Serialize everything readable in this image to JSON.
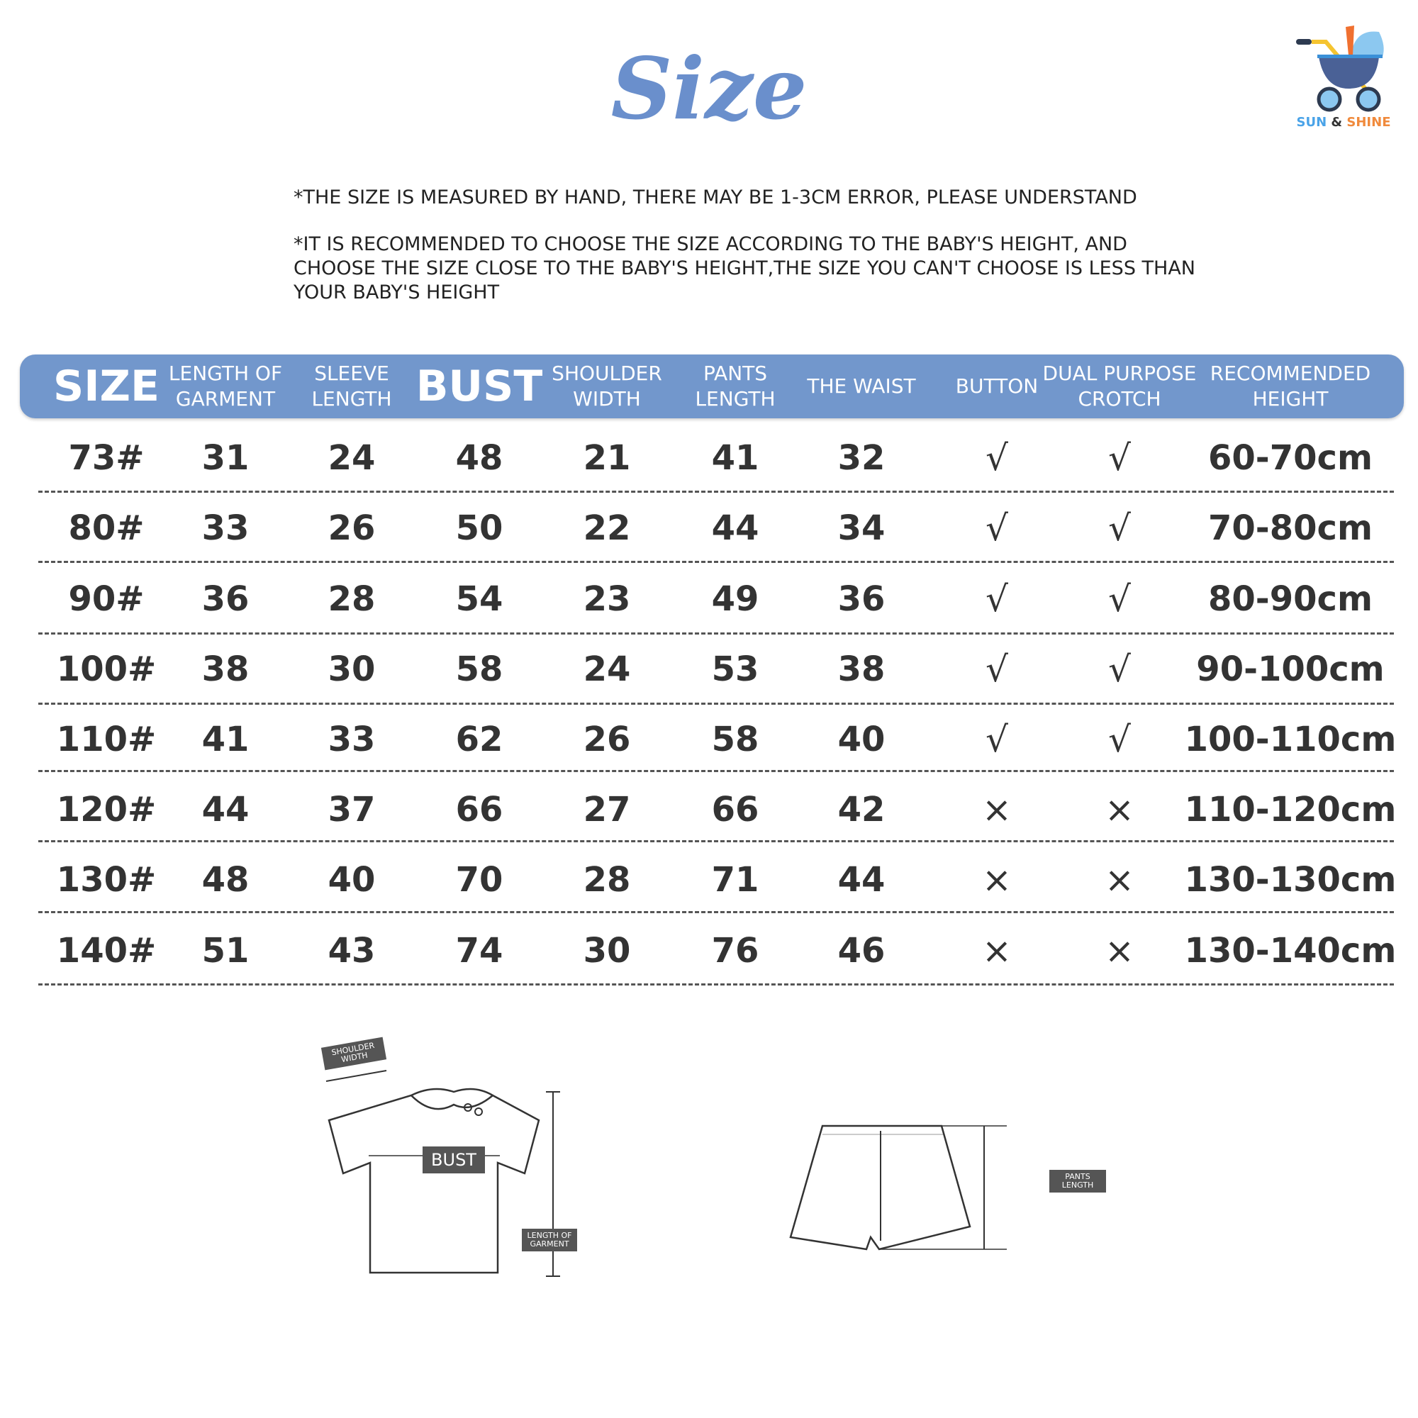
{
  "title": "Size",
  "logo": {
    "text_left": "SUN",
    "text_amp": "&",
    "text_right": "SHINE",
    "colors": {
      "blue": "#4aa3e8",
      "orange": "#f08a3c",
      "navy": "#4a6196",
      "yellow": "#f5c430"
    }
  },
  "notes": [
    "*THE SIZE IS MEASURED BY HAND, THERE MAY BE 1-3CM ERROR, PLEASE UNDERSTAND",
    "*IT IS RECOMMENDED TO CHOOSE THE SIZE ACCORDING TO THE BABY'S HEIGHT, AND CHOOSE THE SIZE CLOSE TO THE BABY'S  HEIGHT,THE SIZE YOU CAN'T CHOOSE IS LESS THAN  YOUR BABY'S HEIGHT"
  ],
  "header_color": "#7297cc",
  "table": {
    "headers": [
      "SIZE",
      "LENGTH OF\nGARMENT",
      "SLEEVE\nLENGTH",
      "BUST",
      "SHOULDER\nWIDTH",
      "PANTS\nLENGTH",
      "THE WAIST",
      "BUTTON",
      "DUAL PURPOSE\nCROTCH",
      "RECOMMENDED\nHEIGHT"
    ],
    "rows": [
      [
        "73#",
        "31",
        "24",
        "48",
        "21",
        "41",
        "32",
        "√",
        "√",
        "60-70cm"
      ],
      [
        "80#",
        "33",
        "26",
        "50",
        "22",
        "44",
        "34",
        "√",
        "√",
        "70-80cm"
      ],
      [
        "90#",
        "36",
        "28",
        "54",
        "23",
        "49",
        "36",
        "√",
        "√",
        "80-90cm"
      ],
      [
        "100#",
        "38",
        "30",
        "58",
        "24",
        "53",
        "38",
        "√",
        "√",
        "90-100cm"
      ],
      [
        "110#",
        "41",
        "33",
        "62",
        "26",
        "58",
        "40",
        "√",
        "√",
        "100-110cm"
      ],
      [
        "120#",
        "44",
        "37",
        "66",
        "27",
        "66",
        "42",
        "×",
        "×",
        "110-120cm"
      ],
      [
        "130#",
        "48",
        "40",
        "70",
        "28",
        "71",
        "44",
        "×",
        "×",
        "130-130cm"
      ],
      [
        "140#",
        "51",
        "43",
        "74",
        "30",
        "76",
        "46",
        "×",
        "×",
        "130-140cm"
      ]
    ]
  },
  "diagram": {
    "shoulder": "SHOULDER WIDTH",
    "bust": "BUST",
    "length": "LENGTH OF GARMENT",
    "pants": "PANTS LENGTH"
  }
}
